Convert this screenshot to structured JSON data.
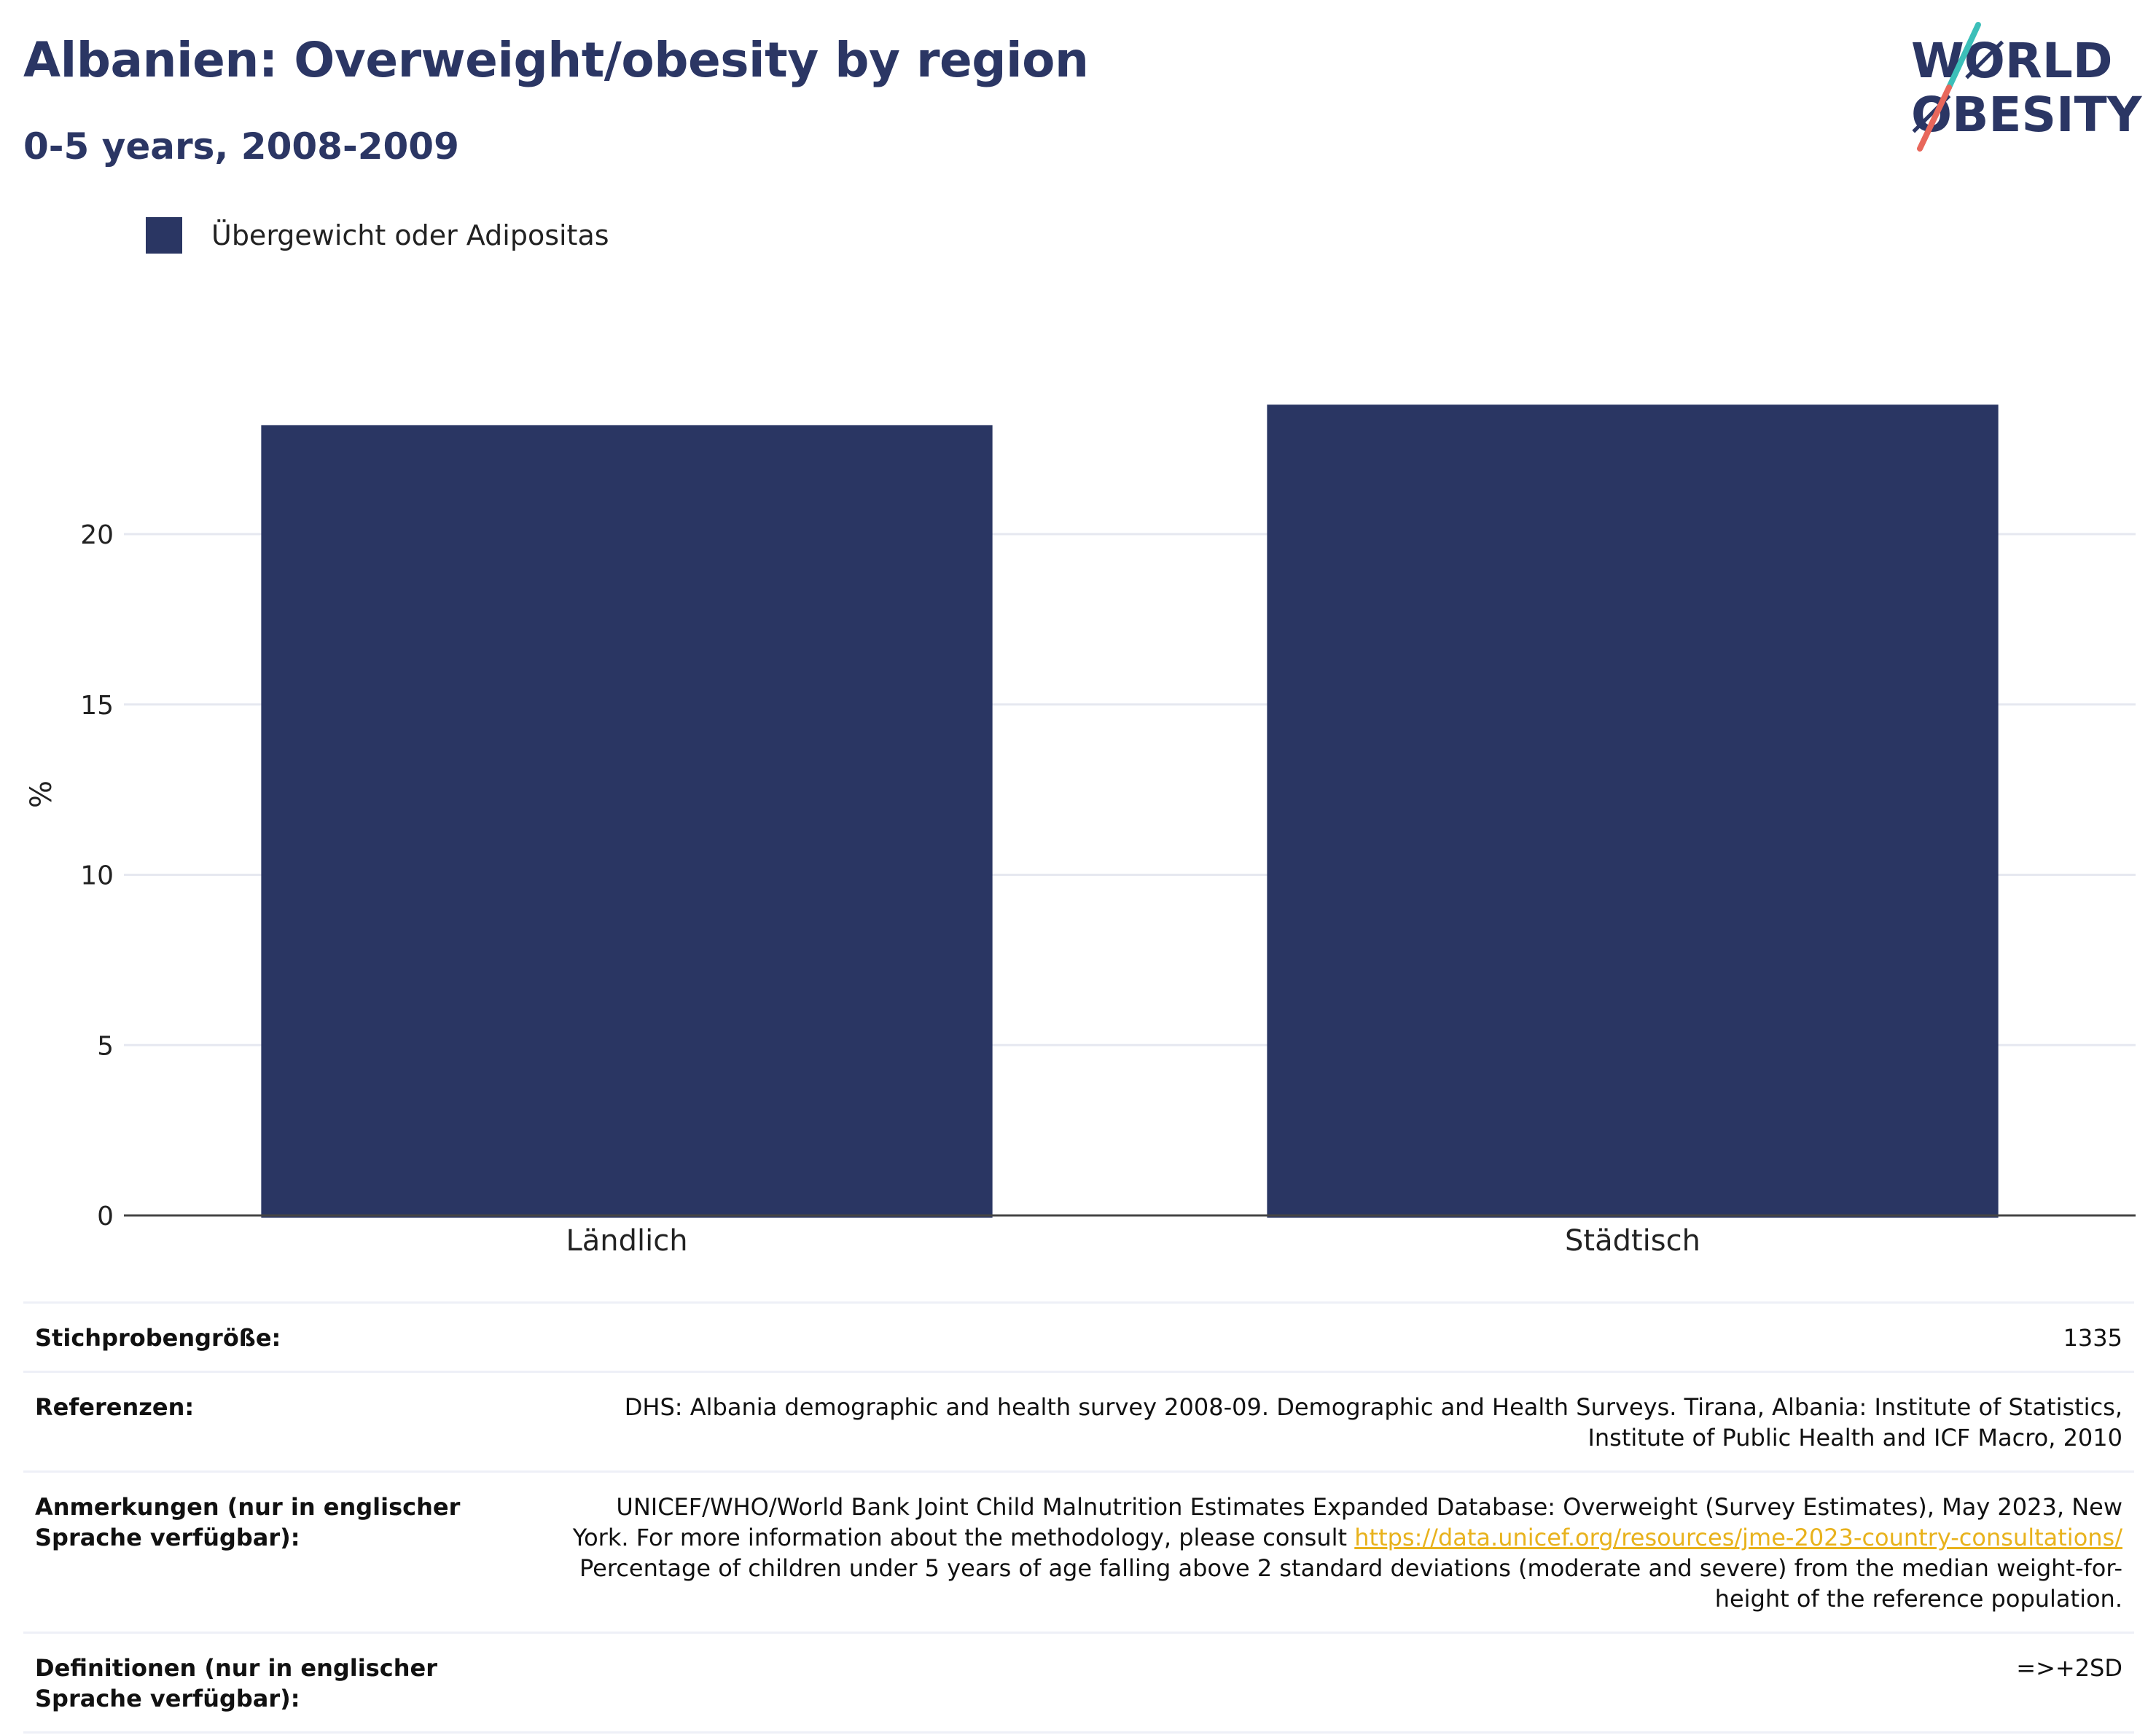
{
  "header": {
    "title": "Albanien: Overweight/obesity by region",
    "subtitle": "0-5 years, 2008-2009"
  },
  "logo": {
    "line1": "WØRLD",
    "line2": "ØBESITY",
    "text_color": "#2b3664",
    "slash_colors": [
      "#3cbfb9",
      "#e8675b"
    ]
  },
  "legend": {
    "items": [
      {
        "label": "Übergewicht oder Adipositas",
        "color": "#2a3663"
      }
    ]
  },
  "chart_data": {
    "type": "bar",
    "categories": [
      "Ländlich",
      "Städtisch"
    ],
    "series": [
      {
        "name": "Übergewicht oder Adipositas",
        "values": [
          23.2,
          23.8
        ],
        "color": "#2a3663"
      }
    ],
    "ylabel": "%",
    "xlabel": "",
    "ylim": [
      0,
      25
    ],
    "yticks": [
      0,
      5,
      10,
      15,
      20
    ],
    "grid": true,
    "legend_position": "top-left"
  },
  "info": {
    "sample_size": {
      "label": "Stichprobengröße:",
      "value": "1335"
    },
    "references": {
      "label": "Referenzen:",
      "value": "DHS: Albania demographic and health survey 2008-09. Demographic and Health Surveys. Tirana, Albania: Institute of Statistics, Institute of Public Health and ICF Macro, 2010"
    },
    "notes": {
      "label": "Anmerkungen (nur in englischer Sprache verfügbar):",
      "text_before": "UNICEF/WHO/World Bank Joint Child Malnutrition Estimates Expanded Database: Overweight (Survey Estimates), May 2023, New York. For more information about the methodology, please consult ",
      "link": "https://data.unicef.org/resources/jme-2023-country-consultations/",
      "text_after": " Percentage of children under 5 years of age falling above 2 standard deviations (moderate and severe) from the median weight-for-height of the reference population."
    },
    "definitions": {
      "label": "Definitionen (nur in englischer Sprache verfügbar):",
      "value": "=>+2SD"
    }
  }
}
